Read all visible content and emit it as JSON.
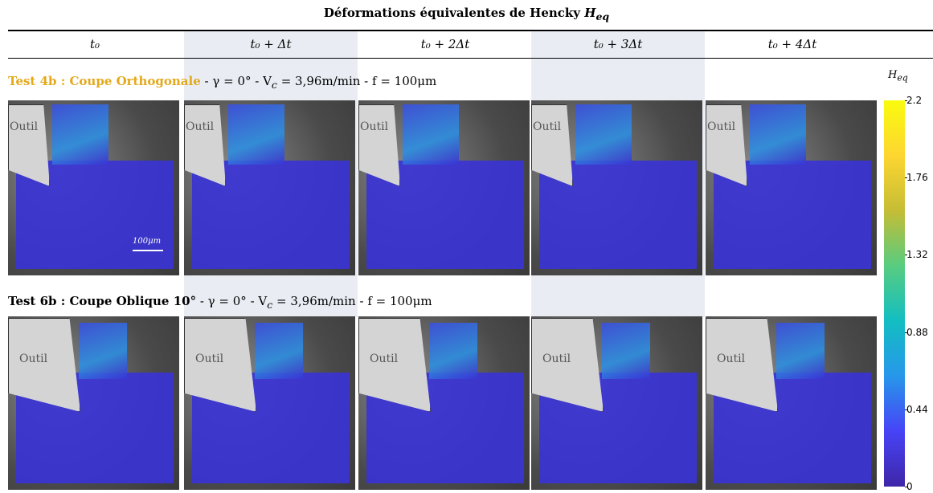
{
  "title": "Déformations équivalentes de Hencky",
  "title_symbol": "H",
  "title_symbol_sub": "eq",
  "columns": [
    "t₀",
    "t₀ + Δt",
    "t₀ + 2Δt",
    "t₀ + 3Δt",
    "t₀ + 4Δt"
  ],
  "rows": [
    {
      "test": "Test 4b : Coupe Orthogonale",
      "params": [
        " - γ = 0° - V",
        "c",
        " = 3,96m/min - f = 100μm"
      ],
      "tool_labels": [
        "Outil",
        "Outil",
        "Outil",
        "Outil",
        "Outil"
      ],
      "scale_bar": "100μm"
    },
    {
      "test": "Test 6b : Coupe Oblique 10°",
      "params": [
        " - γ = 0° - V",
        "c",
        " = 3,96m/min - f = 100μm"
      ],
      "tool_labels": [
        "Outil",
        "Outil",
        "Outil",
        "Outil",
        "Outil"
      ]
    }
  ],
  "colorbar": {
    "label": "H",
    "label_sub": "eq",
    "lim": [
      0,
      2.2
    ],
    "ticks": [
      0,
      0.44,
      0.88,
      1.32,
      1.76,
      2.2
    ]
  }
}
